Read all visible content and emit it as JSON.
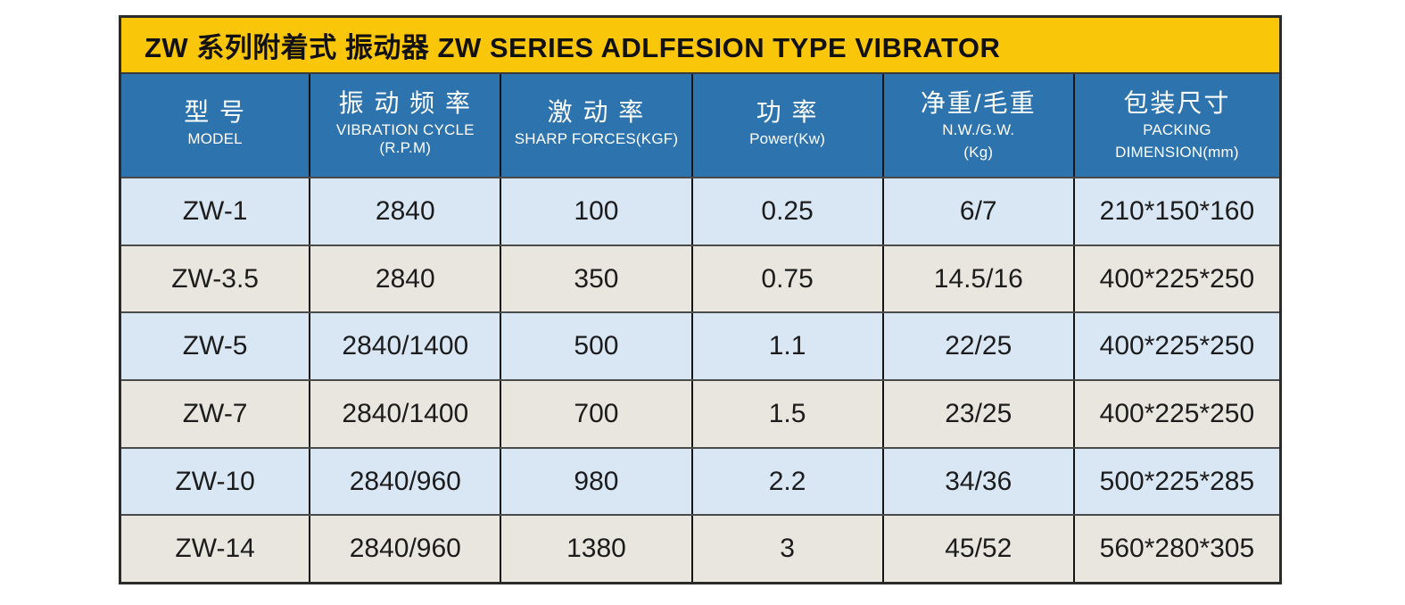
{
  "banner": {
    "title": "ZW 系列附着式 振动器 ZW SERIES ADLFESION TYPE VIBRATOR"
  },
  "table": {
    "columns": [
      {
        "zh": "型 号",
        "en1": "MODEL",
        "en2": ""
      },
      {
        "zh": "振 动 频 率",
        "en1": "VIBRATION CYCLE (R.P.M)",
        "en2": ""
      },
      {
        "zh": "激 动 率",
        "en1": "SHARP FORCES(KGF)",
        "en2": ""
      },
      {
        "zh": "功 率",
        "en1": "Power(Kw)",
        "en2": ""
      },
      {
        "zh": "净重/毛重",
        "en1": "N.W./G.W.",
        "en2": "(Kg)"
      },
      {
        "zh": "包装尺寸",
        "en1": "PACKING",
        "en2": "DIMENSION(mm)"
      }
    ],
    "rows": [
      [
        "ZW-1",
        "2840",
        "100",
        "0.25",
        "6/7",
        "210*150*160"
      ],
      [
        "ZW-3.5",
        "2840",
        "350",
        "0.75",
        "14.5/16",
        "400*225*250"
      ],
      [
        "ZW-5",
        "2840/1400",
        "500",
        "1.1",
        "22/25",
        "400*225*250"
      ],
      [
        "ZW-7",
        "2840/1400",
        "700",
        "1.5",
        "23/25",
        "400*225*250"
      ],
      [
        "ZW-10",
        "2840/960",
        "980",
        "2.2",
        "34/36",
        "500*225*285"
      ],
      [
        "ZW-14",
        "2840/960",
        "1380",
        "3",
        "45/52",
        "560*280*305"
      ]
    ]
  },
  "colors": {
    "banner_bg": "#fac60a",
    "header_bg": "#2d73ad",
    "row_blue": "#d9e7f5",
    "row_gray": "#e8e6de",
    "border": "#2b2b2b"
  }
}
